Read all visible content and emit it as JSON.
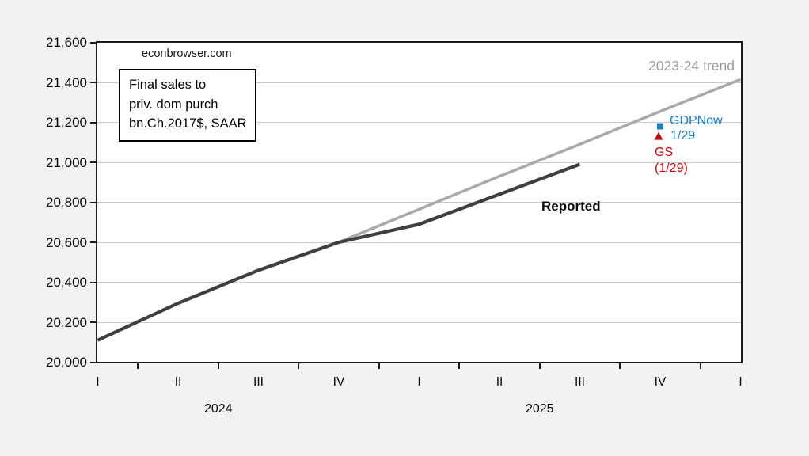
{
  "watermark": "econbrowser.com",
  "info_box": {
    "lines": [
      "Final sales to",
      "priv. dom purch",
      "bn.Ch.2017$, SAAR"
    ]
  },
  "labels": {
    "trend": "2023-24 trend",
    "reported": "Reported",
    "gdpnow_line1": "GDPNow",
    "gdpnow_line2": "1/29",
    "gs_line1": "GS",
    "gs_line2": "(1/29)"
  },
  "colors": {
    "background": "#f2f2f2",
    "plot_background": "#ffffff",
    "gridline": "#cacaca",
    "axis": "#1a1a1a",
    "trend_line": "#a9a9a9",
    "reported_line": "#3f3f3f",
    "gdpnow_blue": "#1b7ec6",
    "gs_red": "#c00b10",
    "trend_label_gray": "#9b9b9b"
  },
  "chart_data": {
    "type": "line",
    "title": "",
    "watermark": "econbrowser.com",
    "annotation_box": "Final sales to priv. dom purch bn.Ch.2017$, SAAR",
    "x_quarter_labels": [
      "I",
      "II",
      "III",
      "IV",
      "I",
      "II",
      "III",
      "IV",
      "I"
    ],
    "x_year_labels": [
      {
        "label": "2024",
        "position": 1.5
      },
      {
        "label": "2025",
        "position": 5.5
      }
    ],
    "x_quarters": [
      "2024Q1",
      "2024Q2",
      "2024Q3",
      "2024Q4",
      "2025Q1",
      "2025Q2",
      "2025Q3",
      "2025Q4",
      "2026Q1"
    ],
    "ylim": [
      20000,
      21600
    ],
    "ytick_step": 200,
    "ytick_labels": [
      "21,600",
      "21,400",
      "21,200",
      "21,000",
      "20,800",
      "20,600",
      "20,400",
      "20,200",
      "20,000"
    ],
    "grid": "horizontal-only",
    "series": [
      {
        "name": "2023-24 trend",
        "color": "#a9a9a9",
        "width": 3.5,
        "x_start_index": 3,
        "values": [
          20600,
          20765,
          20930,
          21090,
          21255,
          21415
        ]
      },
      {
        "name": "Reported",
        "color": "#3f3f3f",
        "width": 4.2,
        "x_start_index": 0,
        "values": [
          20110,
          20295,
          20460,
          20600,
          20690,
          20840,
          20990
        ]
      }
    ],
    "points": [
      {
        "name": "GDPNow 1/29",
        "marker": "square",
        "color": "#1b7ec6",
        "x_index": 7,
        "x_quarter": "2025Q4",
        "value": 21180
      },
      {
        "name": "GS (1/29)",
        "marker": "triangle",
        "color": "#c00b10",
        "x_index": 7,
        "x_quarter": "2025Q4",
        "value": 21130
      }
    ],
    "legend_position": "none"
  }
}
